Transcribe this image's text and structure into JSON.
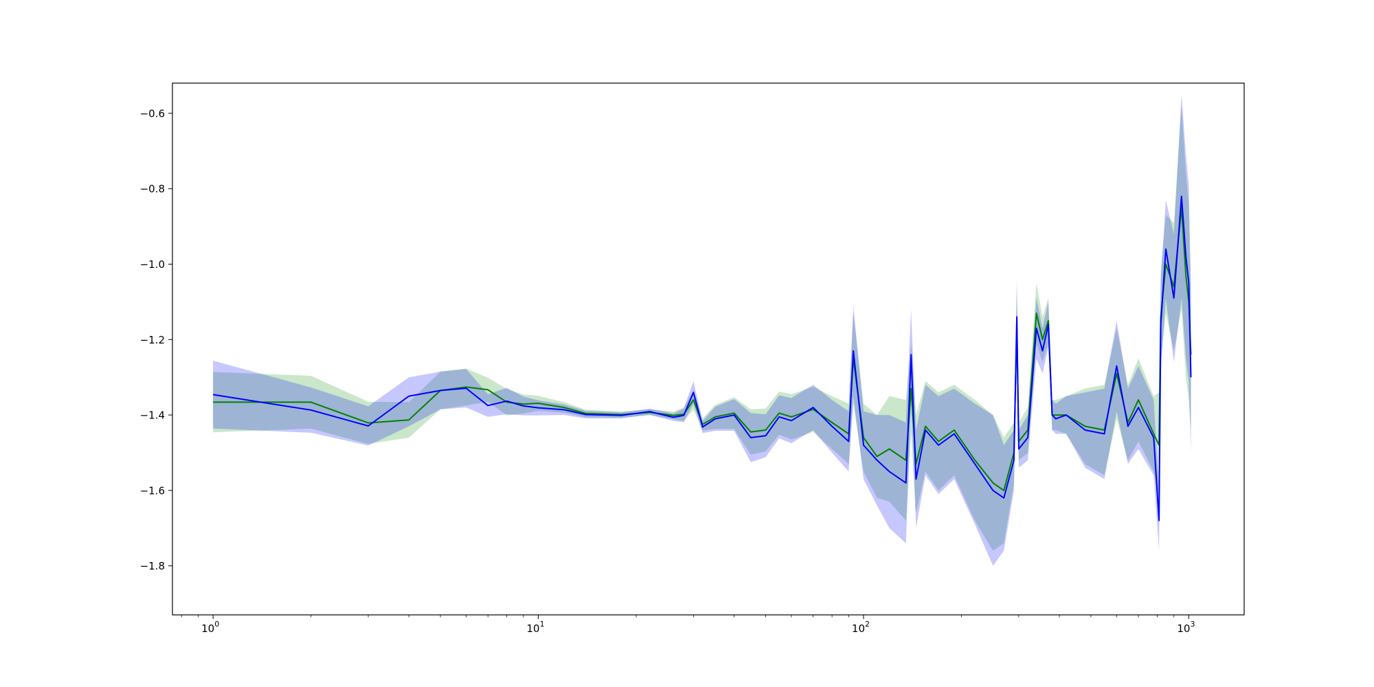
{
  "chart_data": {
    "type": "line",
    "title": "",
    "xlabel": "",
    "ylabel": "",
    "xscale": "log",
    "xlim": [
      0.75,
      1480
    ],
    "ylim": [
      -1.93,
      -0.52
    ],
    "grid": false,
    "legend": "none",
    "x_ticks": [
      {
        "base": "10",
        "exp": "0",
        "value": 1
      },
      {
        "base": "10",
        "exp": "1",
        "value": 10
      },
      {
        "base": "10",
        "exp": "2",
        "value": 100
      },
      {
        "base": "10",
        "exp": "3",
        "value": 1000
      }
    ],
    "y_ticks": [
      {
        "label": "−0.6",
        "value": -0.6
      },
      {
        "label": "−0.8",
        "value": -0.8
      },
      {
        "label": "−1.0",
        "value": -1.0
      },
      {
        "label": "−1.2",
        "value": -1.2
      },
      {
        "label": "−1.4",
        "value": -1.4
      },
      {
        "label": "−1.6",
        "value": -1.6
      },
      {
        "label": "−1.8",
        "value": -1.8
      }
    ],
    "series": [
      {
        "color": "#008000",
        "band_color": "#2ca02c",
        "band_opacity": 0.25,
        "x": [
          1,
          2,
          3,
          4,
          5,
          6,
          7,
          8,
          9,
          10,
          12,
          14,
          18,
          22,
          26,
          28,
          30,
          32,
          35,
          40,
          45,
          50,
          55,
          60,
          70,
          80,
          90,
          93,
          100,
          110,
          120,
          135,
          140,
          145,
          155,
          170,
          190,
          220,
          250,
          270,
          290,
          296,
          300,
          320,
          340,
          355,
          370,
          380,
          390,
          420,
          480,
          550,
          600,
          650,
          700,
          780,
          810,
          820,
          850,
          900,
          950,
          980,
          1000,
          1015
        ],
        "y": [
          -1.366,
          -1.366,
          -1.421,
          -1.413,
          -1.335,
          -1.326,
          -1.333,
          -1.366,
          -1.371,
          -1.369,
          -1.38,
          -1.396,
          -1.399,
          -1.393,
          -1.401,
          -1.398,
          -1.36,
          -1.425,
          -1.405,
          -1.395,
          -1.445,
          -1.44,
          -1.395,
          -1.405,
          -1.385,
          -1.42,
          -1.45,
          -1.25,
          -1.46,
          -1.51,
          -1.49,
          -1.52,
          -1.33,
          -1.53,
          -1.43,
          -1.47,
          -1.44,
          -1.52,
          -1.58,
          -1.6,
          -1.5,
          -1.16,
          -1.47,
          -1.44,
          -1.13,
          -1.2,
          -1.15,
          -1.4,
          -1.4,
          -1.4,
          -1.43,
          -1.44,
          -1.29,
          -1.42,
          -1.36,
          -1.45,
          -1.48,
          -1.14,
          -1.0,
          -1.06,
          -0.85,
          -1.03,
          -1.1,
          -1.24
        ],
        "lower": [
          -1.446,
          -1.436,
          -1.477,
          -1.46,
          -1.385,
          -1.375,
          -1.365,
          -1.401,
          -1.396,
          -1.389,
          -1.394,
          -1.406,
          -1.407,
          -1.401,
          -1.411,
          -1.416,
          -1.386,
          -1.441,
          -1.437,
          -1.437,
          -1.505,
          -1.497,
          -1.452,
          -1.465,
          -1.445,
          -1.49,
          -1.53,
          -1.37,
          -1.55,
          -1.62,
          -1.63,
          -1.68,
          -1.45,
          -1.66,
          -1.55,
          -1.6,
          -1.56,
          -1.68,
          -1.76,
          -1.74,
          -1.58,
          -1.26,
          -1.52,
          -1.5,
          -1.21,
          -1.26,
          -1.21,
          -1.44,
          -1.44,
          -1.45,
          -1.53,
          -1.56,
          -1.41,
          -1.52,
          -1.47,
          -1.55,
          -1.62,
          -1.26,
          -1.13,
          -1.23,
          -1.12,
          -1.3,
          -1.36,
          -1.44
        ],
        "upper": [
          -1.286,
          -1.296,
          -1.365,
          -1.366,
          -1.285,
          -1.277,
          -1.301,
          -1.331,
          -1.346,
          -1.349,
          -1.366,
          -1.386,
          -1.391,
          -1.385,
          -1.391,
          -1.38,
          -1.334,
          -1.409,
          -1.373,
          -1.353,
          -1.385,
          -1.383,
          -1.338,
          -1.345,
          -1.325,
          -1.35,
          -1.37,
          -1.13,
          -1.37,
          -1.4,
          -1.35,
          -1.36,
          -1.21,
          -1.4,
          -1.31,
          -1.34,
          -1.32,
          -1.36,
          -1.4,
          -1.46,
          -1.42,
          -1.06,
          -1.42,
          -1.38,
          -1.05,
          -1.14,
          -1.09,
          -1.36,
          -1.36,
          -1.35,
          -1.33,
          -1.32,
          -1.17,
          -1.32,
          -1.25,
          -1.35,
          -1.34,
          -1.02,
          -0.87,
          -0.89,
          -0.58,
          -0.76,
          -0.84,
          -1.04
        ]
      },
      {
        "color": "#0000ff",
        "band_color": "#0000ff",
        "band_opacity": 0.22,
        "x": [
          1,
          2,
          3,
          4,
          5,
          6,
          7,
          8,
          9,
          10,
          12,
          14,
          18,
          22,
          26,
          28,
          30,
          32,
          35,
          40,
          45,
          50,
          55,
          60,
          70,
          80,
          90,
          93,
          100,
          110,
          120,
          135,
          140,
          145,
          155,
          170,
          190,
          220,
          250,
          270,
          290,
          296,
          300,
          320,
          340,
          355,
          370,
          380,
          390,
          420,
          480,
          550,
          600,
          650,
          700,
          780,
          810,
          820,
          850,
          900,
          950,
          980,
          1000,
          1015
        ],
        "y": [
          -1.346,
          -1.387,
          -1.429,
          -1.35,
          -1.335,
          -1.329,
          -1.375,
          -1.363,
          -1.376,
          -1.381,
          -1.386,
          -1.399,
          -1.401,
          -1.391,
          -1.406,
          -1.401,
          -1.34,
          -1.432,
          -1.41,
          -1.4,
          -1.46,
          -1.455,
          -1.405,
          -1.415,
          -1.38,
          -1.43,
          -1.47,
          -1.23,
          -1.48,
          -1.52,
          -1.55,
          -1.58,
          -1.24,
          -1.57,
          -1.44,
          -1.48,
          -1.45,
          -1.53,
          -1.6,
          -1.62,
          -1.52,
          -1.14,
          -1.49,
          -1.46,
          -1.17,
          -1.23,
          -1.16,
          -1.4,
          -1.41,
          -1.4,
          -1.44,
          -1.45,
          -1.27,
          -1.43,
          -1.38,
          -1.46,
          -1.68,
          -1.16,
          -0.96,
          -1.09,
          -0.82,
          -0.98,
          -1.05,
          -1.3
        ],
        "lower": [
          -1.436,
          -1.447,
          -1.481,
          -1.43,
          -1.385,
          -1.38,
          -1.405,
          -1.398,
          -1.401,
          -1.401,
          -1.4,
          -1.409,
          -1.409,
          -1.399,
          -1.416,
          -1.419,
          -1.37,
          -1.448,
          -1.442,
          -1.442,
          -1.525,
          -1.512,
          -1.462,
          -1.475,
          -1.44,
          -1.5,
          -1.55,
          -1.35,
          -1.57,
          -1.64,
          -1.7,
          -1.74,
          -1.36,
          -1.7,
          -1.56,
          -1.61,
          -1.57,
          -1.69,
          -1.8,
          -1.76,
          -1.6,
          -1.24,
          -1.54,
          -1.52,
          -1.25,
          -1.29,
          -1.22,
          -1.44,
          -1.45,
          -1.45,
          -1.54,
          -1.57,
          -1.39,
          -1.53,
          -1.49,
          -1.56,
          -1.76,
          -1.28,
          -1.09,
          -1.26,
          -1.09,
          -1.25,
          -1.31,
          -1.5
        ],
        "upper": [
          -1.256,
          -1.327,
          -1.377,
          -1.3,
          -1.285,
          -1.278,
          -1.345,
          -1.328,
          -1.351,
          -1.361,
          -1.372,
          -1.389,
          -1.393,
          -1.383,
          -1.396,
          -1.383,
          -1.31,
          -1.416,
          -1.378,
          -1.358,
          -1.395,
          -1.398,
          -1.348,
          -1.355,
          -1.32,
          -1.36,
          -1.39,
          -1.11,
          -1.39,
          -1.4,
          -1.4,
          -1.42,
          -1.12,
          -1.44,
          -1.32,
          -1.35,
          -1.33,
          -1.37,
          -1.4,
          -1.48,
          -1.44,
          -1.04,
          -1.44,
          -1.4,
          -1.09,
          -1.17,
          -1.1,
          -1.36,
          -1.37,
          -1.35,
          -1.34,
          -1.33,
          -1.15,
          -1.33,
          -1.27,
          -1.36,
          -1.6,
          -1.04,
          -0.83,
          -0.92,
          -0.55,
          -0.71,
          -0.79,
          -1.1
        ]
      }
    ]
  }
}
